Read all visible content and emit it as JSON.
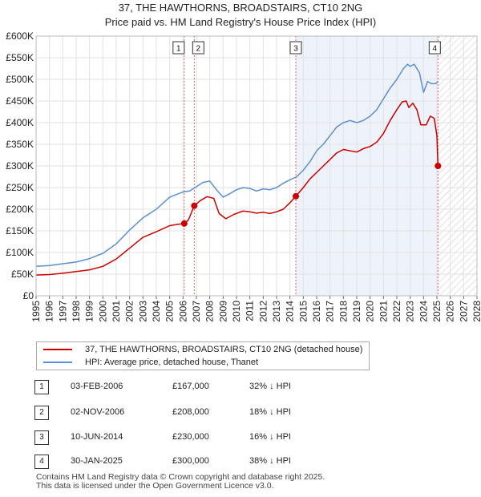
{
  "header": {
    "title_line1": "37, THE HAWTHORNS, BROADSTAIRS, CT10 2NG",
    "title_line2": "Price paid vs. HM Land Registry's House Price Index (HPI)"
  },
  "chart_data": {
    "type": "line",
    "title": "37, THE HAWTHORNS, BROADSTAIRS, CT10 2NG",
    "subtitle": "Price paid vs. HM Land Registry's House Price Index (HPI)",
    "xlabel": "",
    "ylabel": "",
    "xlim": [
      1995,
      2028
    ],
    "ylim": [
      0,
      600000
    ],
    "x_ticks": [
      "1995",
      "1996",
      "1997",
      "1998",
      "1999",
      "2000",
      "2001",
      "2002",
      "2003",
      "2004",
      "2005",
      "2006",
      "2007",
      "2008",
      "2009",
      "2010",
      "2011",
      "2012",
      "2013",
      "2014",
      "2015",
      "2016",
      "2017",
      "2018",
      "2019",
      "2020",
      "2021",
      "2022",
      "2023",
      "2024",
      "2025",
      "2026",
      "2027",
      "2028"
    ],
    "y_ticks": [
      {
        "value": 0,
        "label": "£0"
      },
      {
        "value": 50000,
        "label": "£50K"
      },
      {
        "value": 100000,
        "label": "£100K"
      },
      {
        "value": 150000,
        "label": "£150K"
      },
      {
        "value": 200000,
        "label": "£200K"
      },
      {
        "value": 250000,
        "label": "£250K"
      },
      {
        "value": 300000,
        "label": "£300K"
      },
      {
        "value": 350000,
        "label": "£350K"
      },
      {
        "value": 400000,
        "label": "£400K"
      },
      {
        "value": 450000,
        "label": "£450K"
      },
      {
        "value": 500000,
        "label": "£500K"
      },
      {
        "value": 550000,
        "label": "£550K"
      },
      {
        "value": 600000,
        "label": "£600K"
      }
    ],
    "grid": true,
    "hatched_from_year": 2025.1,
    "shaded_period": [
      2014.44,
      2025.08
    ],
    "series": [
      {
        "name": "37, THE HAWTHORNS, BROADSTAIRS, CT10 2NG (detached house)",
        "color": "#cc0000",
        "x": [
          1995.0,
          1996.0,
          1997.0,
          1998.0,
          1999.0,
          2000.0,
          2001.0,
          2002.0,
          2003.0,
          2004.0,
          2005.0,
          2005.6,
          2006.09,
          2006.4,
          2006.84,
          2007.3,
          2007.8,
          2008.3,
          2008.7,
          2009.2,
          2009.8,
          2010.5,
          2011.0,
          2011.5,
          2012.0,
          2012.5,
          2013.0,
          2013.5,
          2014.0,
          2014.44,
          2015.0,
          2015.5,
          2016.0,
          2016.5,
          2017.0,
          2017.5,
          2018.0,
          2018.5,
          2019.0,
          2019.5,
          2020.0,
          2020.5,
          2021.0,
          2021.5,
          2022.0,
          2022.4,
          2022.7,
          2022.9,
          2023.2,
          2023.5,
          2023.8,
          2024.2,
          2024.5,
          2024.8,
          2025.0,
          2025.08
        ],
        "values": [
          48000,
          49000,
          52000,
          56000,
          60000,
          68000,
          85000,
          110000,
          135000,
          148000,
          162000,
          165000,
          167000,
          175000,
          208000,
          220000,
          229000,
          225000,
          190000,
          178000,
          188000,
          196000,
          194000,
          191000,
          193000,
          190000,
          194000,
          200000,
          215000,
          230000,
          250000,
          270000,
          285000,
          300000,
          315000,
          330000,
          338000,
          335000,
          332000,
          340000,
          345000,
          355000,
          375000,
          405000,
          430000,
          448000,
          450000,
          435000,
          445000,
          430000,
          395000,
          395000,
          415000,
          410000,
          370000,
          300000
        ]
      },
      {
        "name": "HPI: Average price, detached house, Thanet",
        "color": "#5b8fd1",
        "x": [
          1995.0,
          1996.0,
          1997.0,
          1998.0,
          1999.0,
          2000.0,
          2001.0,
          2002.0,
          2003.0,
          2004.0,
          2005.0,
          2006.0,
          2006.5,
          2007.0,
          2007.5,
          2008.0,
          2008.5,
          2009.0,
          2009.5,
          2010.0,
          2010.5,
          2011.0,
          2011.5,
          2012.0,
          2012.5,
          2013.0,
          2013.5,
          2014.0,
          2014.5,
          2015.0,
          2015.5,
          2016.0,
          2016.5,
          2017.0,
          2017.5,
          2018.0,
          2018.5,
          2019.0,
          2019.5,
          2020.0,
          2020.5,
          2021.0,
          2021.5,
          2022.0,
          2022.5,
          2022.8,
          2023.0,
          2023.3,
          2023.7,
          2024.0,
          2024.3,
          2024.6,
          2024.9,
          2025.08
        ],
        "values": [
          68000,
          70000,
          74000,
          78000,
          86000,
          98000,
          120000,
          152000,
          180000,
          200000,
          228000,
          240000,
          242000,
          252000,
          262000,
          265000,
          245000,
          228000,
          236000,
          245000,
          250000,
          248000,
          242000,
          247000,
          245000,
          250000,
          260000,
          268000,
          275000,
          290000,
          310000,
          335000,
          350000,
          370000,
          390000,
          400000,
          405000,
          400000,
          405000,
          415000,
          430000,
          455000,
          480000,
          500000,
          525000,
          535000,
          530000,
          535000,
          515000,
          470000,
          495000,
          490000,
          490000,
          495000
        ]
      }
    ],
    "sale_points": [
      {
        "label": "1",
        "x": 2006.09,
        "value": 167000
      },
      {
        "label": "2",
        "x": 2006.84,
        "value": 208000
      },
      {
        "label": "3",
        "x": 2014.44,
        "value": 230000
      },
      {
        "label": "4",
        "x": 2025.08,
        "value": 300000
      }
    ]
  },
  "legend": {
    "series1": "37, THE HAWTHORNS, BROADSTAIRS, CT10 2NG (detached house)",
    "series2": "HPI: Average price, detached house, Thanet",
    "color1": "#cc0000",
    "color2": "#5b8fd1"
  },
  "transactions": [
    {
      "num": "1",
      "date": "03-FEB-2006",
      "price": "£167,000",
      "hpi": "32% ↓ HPI"
    },
    {
      "num": "2",
      "date": "02-NOV-2006",
      "price": "£208,000",
      "hpi": "18% ↓ HPI"
    },
    {
      "num": "3",
      "date": "10-JUN-2014",
      "price": "£230,000",
      "hpi": "16% ↓ HPI"
    },
    {
      "num": "4",
      "date": "30-JAN-2025",
      "price": "£300,000",
      "hpi": "38% ↓ HPI"
    }
  ],
  "footer": {
    "line1": "Contains HM Land Registry data © Crown copyright and database right 2025.",
    "line2": "This data is licensed under the Open Government Licence v3.0."
  }
}
